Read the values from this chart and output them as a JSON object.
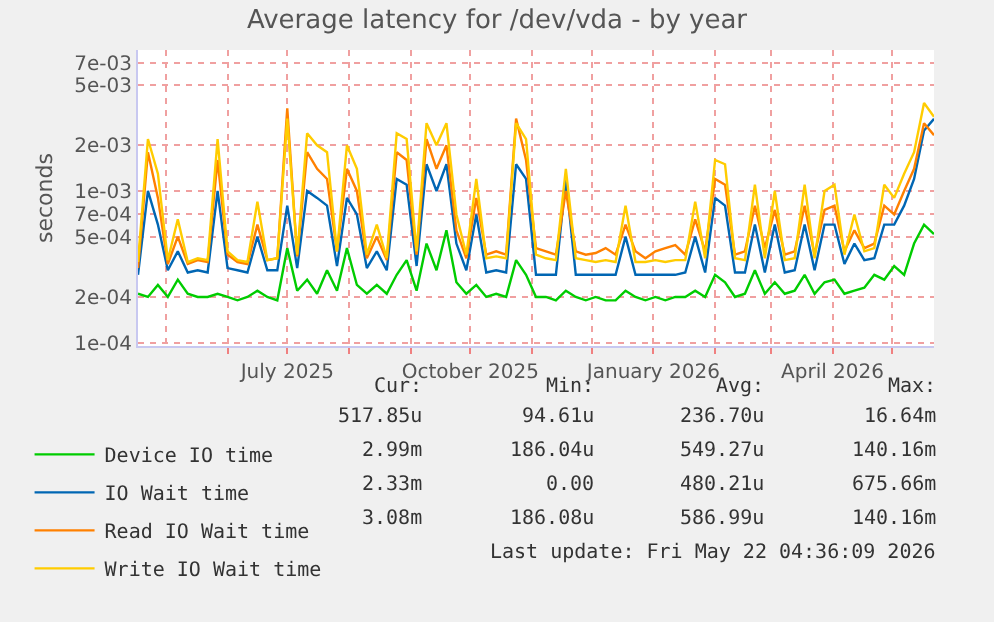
{
  "chart_data": {
    "type": "line",
    "title": "Average latency for /dev/vda - by year",
    "ylabel": "seconds",
    "log": "y",
    "grid": true,
    "legend": "bottom left",
    "x": [
      "2025-04-17",
      "2025-04-22",
      "2025-04-27",
      "2025-05-02",
      "2025-05-07",
      "2025-05-12",
      "2025-05-17",
      "2025-05-22",
      "2025-05-27",
      "2025-06-01",
      "2025-06-06",
      "2025-06-11",
      "2025-06-16",
      "2025-06-21",
      "2025-06-26",
      "2025-07-01",
      "2025-07-06",
      "2025-07-11",
      "2025-07-16",
      "2025-07-21",
      "2025-07-26",
      "2025-07-31",
      "2025-08-05",
      "2025-08-10",
      "2025-08-15",
      "2025-08-20",
      "2025-08-25",
      "2025-08-30",
      "2025-09-04",
      "2025-09-09",
      "2025-09-14",
      "2025-09-19",
      "2025-09-24",
      "2025-09-29",
      "2025-10-04",
      "2025-10-09",
      "2025-10-14",
      "2025-10-19",
      "2025-10-24",
      "2025-10-29",
      "2025-11-03",
      "2025-11-08",
      "2025-11-13",
      "2025-11-18",
      "2025-11-23",
      "2025-11-28",
      "2025-12-03",
      "2025-12-08",
      "2025-12-13",
      "2025-12-18",
      "2025-12-23",
      "2025-12-28",
      "2026-01-02",
      "2026-01-07",
      "2026-01-12",
      "2026-01-17",
      "2026-01-22",
      "2026-01-27",
      "2026-02-01",
      "2026-02-06",
      "2026-02-11",
      "2026-02-16",
      "2026-02-21",
      "2026-02-26",
      "2026-03-03",
      "2026-03-08",
      "2026-03-13",
      "2026-03-18",
      "2026-03-23",
      "2026-03-28",
      "2026-04-02",
      "2026-04-07",
      "2026-04-12",
      "2026-04-17",
      "2026-04-22",
      "2026-04-27",
      "2026-05-02",
      "2026-05-07",
      "2026-05-12",
      "2026-05-17",
      "2026-05-22"
    ],
    "series": [
      {
        "name": "Device IO time",
        "color": "#00cc00",
        "values": [
          0.00021,
          0.0002,
          0.00024,
          0.0002,
          0.00026,
          0.00021,
          0.0002,
          0.0002,
          0.00021,
          0.0002,
          0.00019,
          0.0002,
          0.00022,
          0.0002,
          0.00019,
          0.00042,
          0.00022,
          0.00026,
          0.00021,
          0.0003,
          0.00022,
          0.00042,
          0.00024,
          0.00021,
          0.00024,
          0.00021,
          0.00028,
          0.00035,
          0.00022,
          0.00045,
          0.0003,
          0.00055,
          0.00025,
          0.00021,
          0.00024,
          0.0002,
          0.00021,
          0.0002,
          0.00035,
          0.00028,
          0.0002,
          0.0002,
          0.00019,
          0.00022,
          0.0002,
          0.00019,
          0.0002,
          0.00019,
          0.00019,
          0.00022,
          0.0002,
          0.00019,
          0.0002,
          0.00019,
          0.0002,
          0.0002,
          0.00022,
          0.0002,
          0.00028,
          0.00025,
          0.0002,
          0.00021,
          0.0003,
          0.00021,
          0.00025,
          0.00021,
          0.00022,
          0.00028,
          0.00021,
          0.00025,
          0.00026,
          0.00021,
          0.00022,
          0.00023,
          0.00028,
          0.00026,
          0.00032,
          0.00028,
          0.00045,
          0.0006,
          0.00052
        ]
      },
      {
        "name": "IO Wait time",
        "color": "#0066b3",
        "values": [
          0.00028,
          0.001,
          0.0006,
          0.0003,
          0.0004,
          0.00029,
          0.0003,
          0.00029,
          0.001,
          0.00031,
          0.0003,
          0.00029,
          0.0005,
          0.0003,
          0.0003,
          0.0008,
          0.00031,
          0.001,
          0.0009,
          0.0008,
          0.00032,
          0.0009,
          0.0007,
          0.00031,
          0.0004,
          0.0003,
          0.0012,
          0.0011,
          0.00032,
          0.0015,
          0.001,
          0.0015,
          0.00045,
          0.0003,
          0.0007,
          0.00029,
          0.0003,
          0.00029,
          0.0015,
          0.0012,
          0.00028,
          0.00028,
          0.00028,
          0.0012,
          0.00028,
          0.00028,
          0.00028,
          0.00028,
          0.00028,
          0.0005,
          0.00028,
          0.00028,
          0.00028,
          0.00028,
          0.00028,
          0.00029,
          0.0005,
          0.00029,
          0.0009,
          0.0008,
          0.00029,
          0.00029,
          0.0006,
          0.00029,
          0.0006,
          0.00029,
          0.0003,
          0.0006,
          0.0003,
          0.0006,
          0.0006,
          0.00033,
          0.00045,
          0.00035,
          0.00036,
          0.0006,
          0.0006,
          0.0008,
          0.0012,
          0.0025,
          0.00299
        ]
      },
      {
        "name": "Read IO Wait time",
        "color": "#ff8000",
        "values": [
          0.00031,
          0.0018,
          0.0009,
          0.00033,
          0.0005,
          0.00033,
          0.00035,
          0.00034,
          0.0016,
          0.00038,
          0.00034,
          0.00033,
          0.0006,
          0.00035,
          0.00036,
          0.0035,
          0.00037,
          0.0018,
          0.0014,
          0.0012,
          0.0004,
          0.0014,
          0.001,
          0.00036,
          0.0005,
          0.00035,
          0.0018,
          0.0016,
          0.00038,
          0.0022,
          0.0014,
          0.002,
          0.00055,
          0.00036,
          0.0009,
          0.00038,
          0.0004,
          0.00038,
          0.003,
          0.0016,
          0.00042,
          0.0004,
          0.00038,
          0.001,
          0.0004,
          0.00038,
          0.00039,
          0.00042,
          0.00038,
          0.0006,
          0.0004,
          0.00036,
          0.0004,
          0.00042,
          0.00044,
          0.00038,
          0.00065,
          0.0004,
          0.0012,
          0.0011,
          0.00038,
          0.0004,
          0.0008,
          0.00042,
          0.00075,
          0.00038,
          0.0004,
          0.0008,
          0.00038,
          0.00075,
          0.0008,
          0.0004,
          0.00055,
          0.00042,
          0.00045,
          0.0008,
          0.0007,
          0.001,
          0.0014,
          0.0028,
          0.00233
        ]
      },
      {
        "name": "Write IO Wait time",
        "color": "#ffcc00",
        "values": [
          0.00034,
          0.0022,
          0.0013,
          0.00035,
          0.00065,
          0.00034,
          0.00036,
          0.00035,
          0.0022,
          0.0004,
          0.00035,
          0.00034,
          0.00085,
          0.00035,
          0.00036,
          0.003,
          0.00038,
          0.0024,
          0.002,
          0.0018,
          0.0004,
          0.002,
          0.0014,
          0.00038,
          0.0006,
          0.00036,
          0.0024,
          0.0022,
          0.0004,
          0.0028,
          0.002,
          0.0028,
          0.0007,
          0.00038,
          0.0012,
          0.00036,
          0.00037,
          0.00036,
          0.0028,
          0.0022,
          0.00038,
          0.00036,
          0.00035,
          0.0014,
          0.00036,
          0.00035,
          0.00034,
          0.00035,
          0.00034,
          0.0008,
          0.00034,
          0.00034,
          0.00035,
          0.00034,
          0.00035,
          0.00035,
          0.00085,
          0.00036,
          0.0016,
          0.0015,
          0.00036,
          0.00035,
          0.0011,
          0.00036,
          0.001,
          0.00035,
          0.00036,
          0.0011,
          0.00036,
          0.001,
          0.0011,
          0.00038,
          0.0007,
          0.0004,
          0.00042,
          0.0011,
          0.0009,
          0.0013,
          0.0018,
          0.0038,
          0.00308
        ]
      }
    ],
    "xlim": [
      "2025-04-17",
      "2026-05-22"
    ],
    "xticks": [
      {
        "value": "2025-05-01",
        "label": null
      },
      {
        "value": "2025-06-01",
        "label": null
      },
      {
        "value": "2025-07-01",
        "label": "July 2025"
      },
      {
        "value": "2025-08-01",
        "label": null
      },
      {
        "value": "2025-09-01",
        "label": null
      },
      {
        "value": "2025-10-01",
        "label": "October 2025"
      },
      {
        "value": "2025-11-01",
        "label": null
      },
      {
        "value": "2025-12-01",
        "label": null
      },
      {
        "value": "2026-01-01",
        "label": "January 2026"
      },
      {
        "value": "2026-02-01",
        "label": null
      },
      {
        "value": "2026-03-01",
        "label": null
      },
      {
        "value": "2026-04-01",
        "label": "April 2026"
      },
      {
        "value": "2026-05-01",
        "label": null
      }
    ],
    "ylim": [
      9.5e-05,
      0.0085
    ],
    "yticks": [
      {
        "value": 0.0001,
        "label": "1e-04"
      },
      {
        "value": 0.0002,
        "label": "2e-04"
      },
      {
        "value": 0.0005,
        "label": "5e-04"
      },
      {
        "value": 0.0007,
        "label": "7e-04"
      },
      {
        "value": 0.001,
        "label": "1e-03"
      },
      {
        "value": 0.002,
        "label": "2e-03"
      },
      {
        "value": 0.005,
        "label": "5e-03"
      },
      {
        "value": 0.007,
        "label": "7e-03"
      }
    ],
    "annotations": [
      "Cur:",
      "Min:",
      "Avg:",
      "Max:",
      "517.85u",
      "94.61u",
      "236.70u",
      "16.64m",
      "2.99m",
      "186.04u",
      "549.27u",
      "140.16m",
      "2.33m",
      "0.00",
      "480.21u",
      "675.66m",
      "3.08m",
      "186.08u",
      "586.99u",
      "140.16m",
      "Last update: Fri May 22 04:36:09 2026"
    ]
  }
}
